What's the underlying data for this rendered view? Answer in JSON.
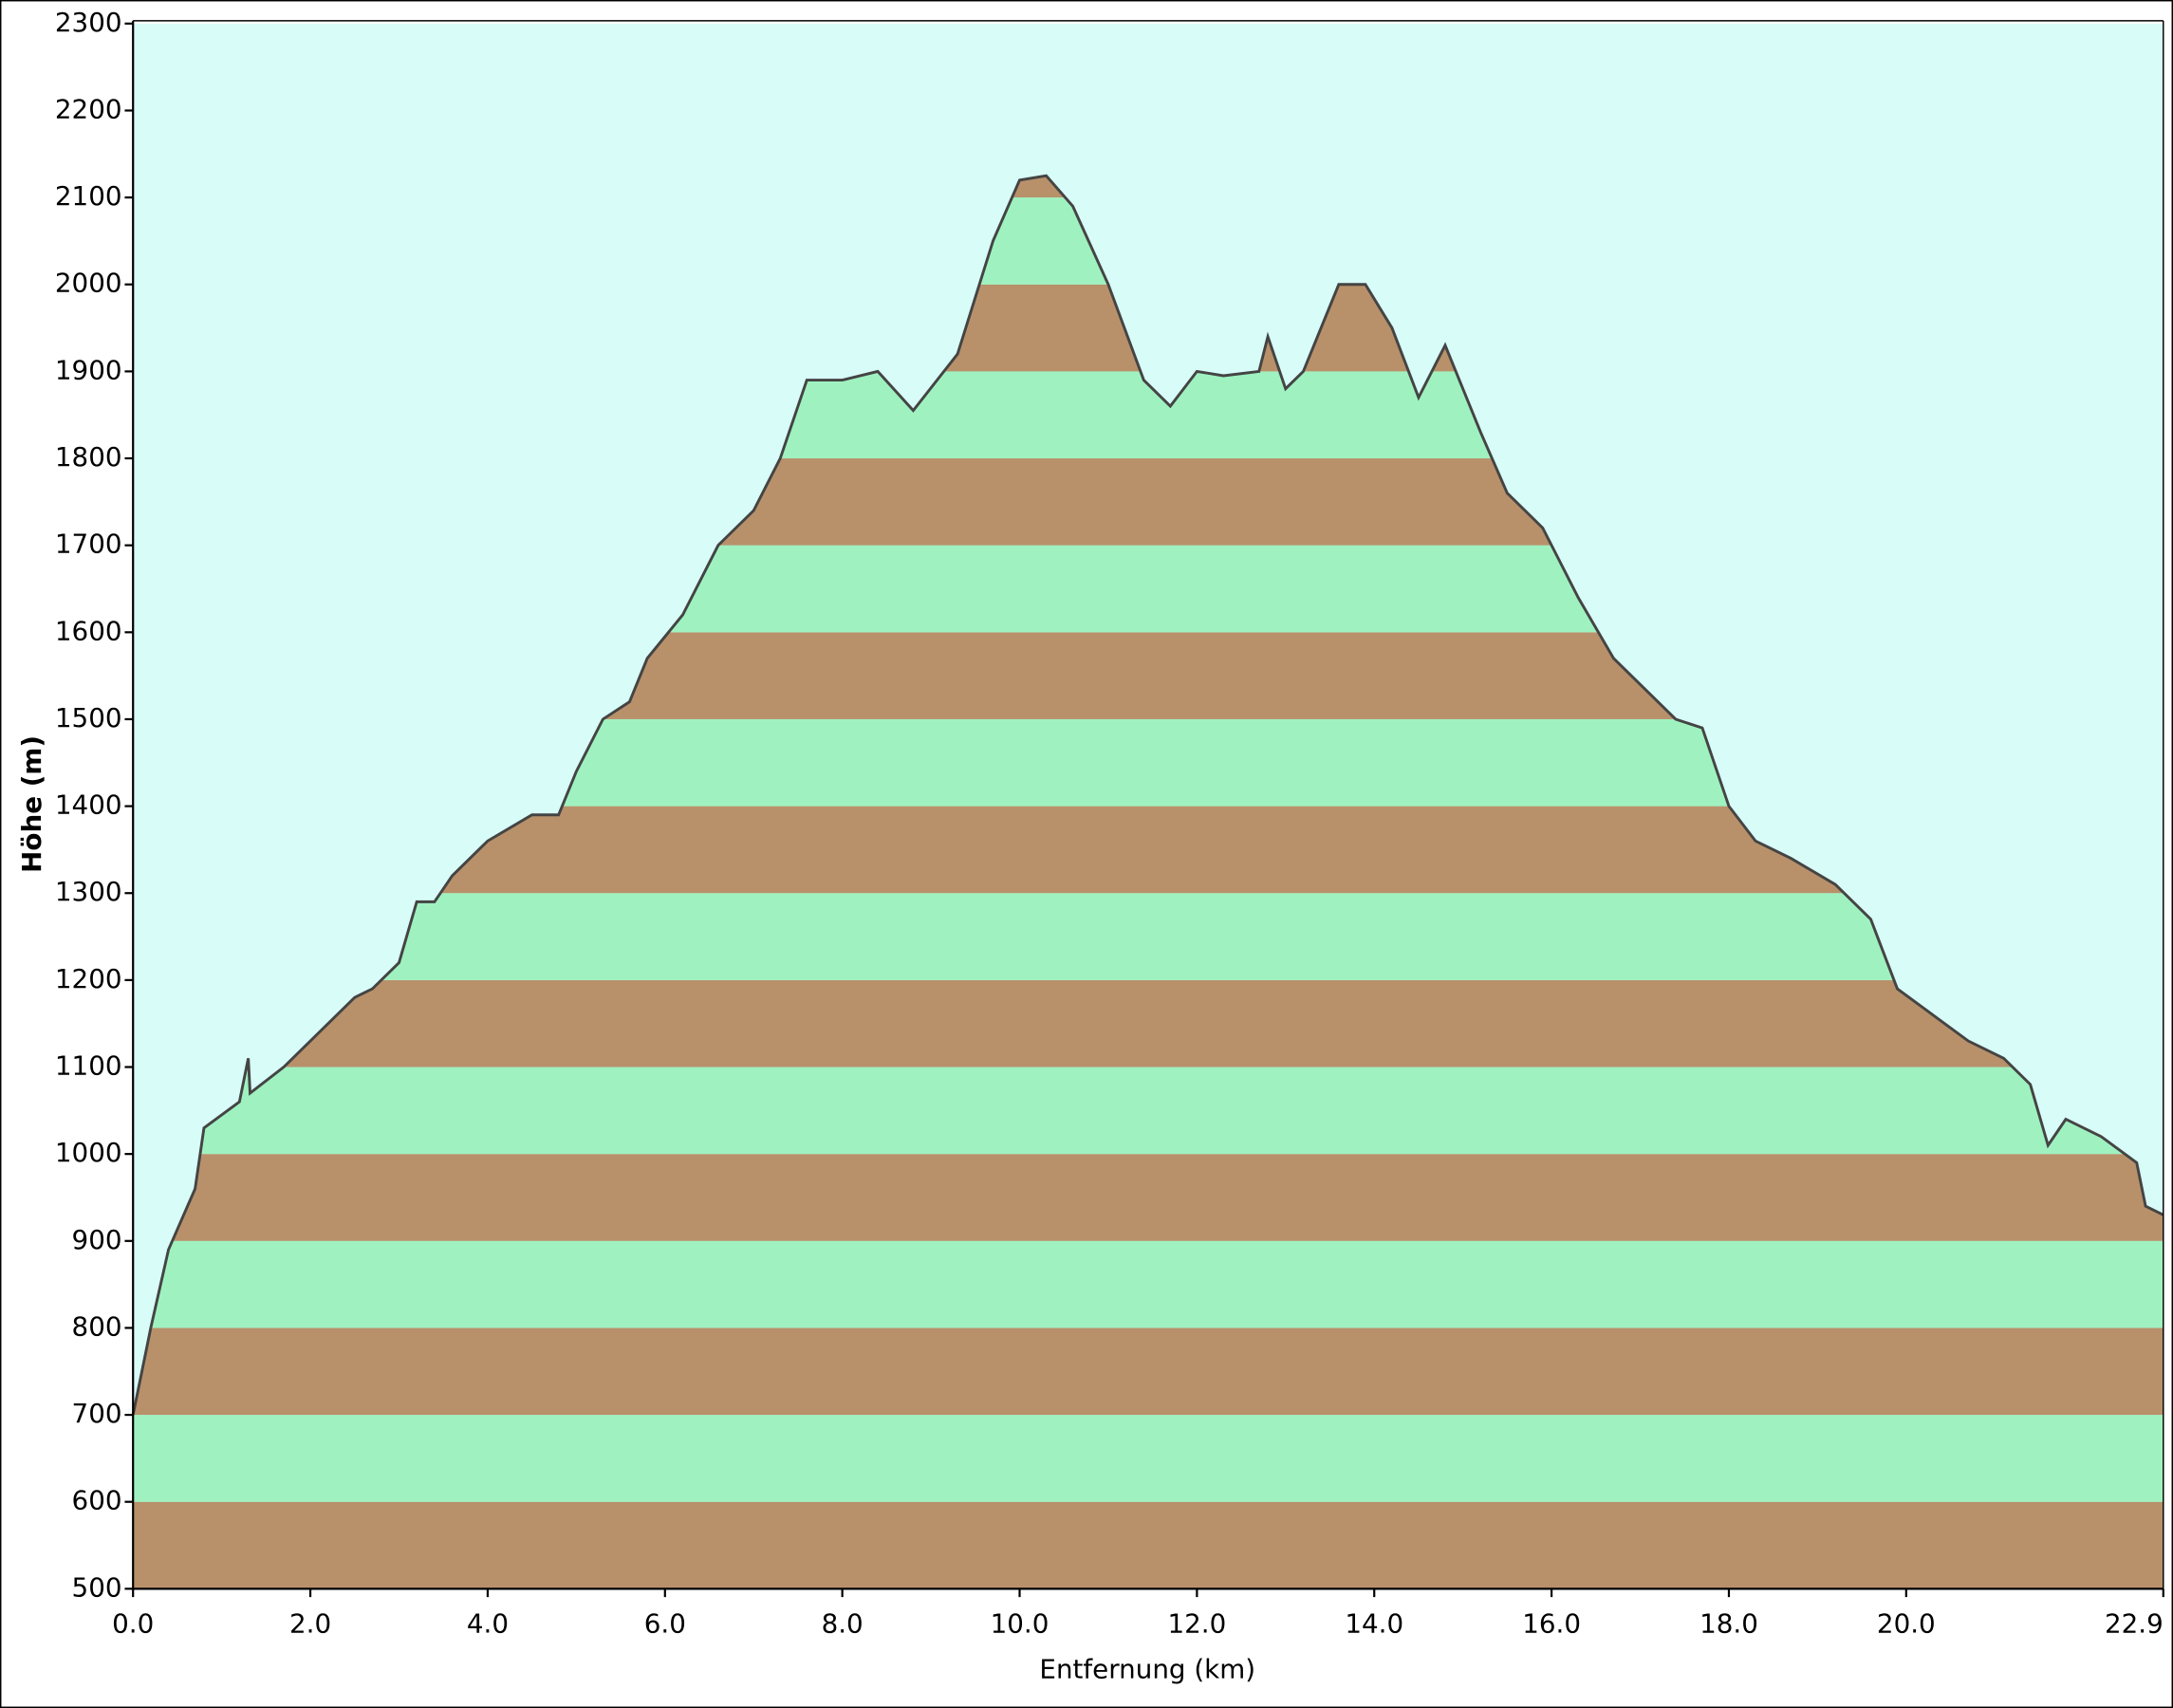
{
  "chart_data": {
    "type": "area",
    "x_label": "Entfernung (km)",
    "y_label": "Höhe (m)",
    "xlim": [
      0,
      22.9
    ],
    "ylim": [
      500,
      2300
    ],
    "xticks": [
      {
        "value": 0,
        "label": "0.0"
      },
      {
        "value": 2,
        "label": "2.0"
      },
      {
        "value": 4,
        "label": "4.0"
      },
      {
        "value": 6,
        "label": "6.0"
      },
      {
        "value": 8,
        "label": "8.0"
      },
      {
        "value": 10,
        "label": "10.0"
      },
      {
        "value": 12,
        "label": "12.0"
      },
      {
        "value": 14,
        "label": "14.0"
      },
      {
        "value": 16,
        "label": "16.0"
      },
      {
        "value": 18,
        "label": "18.0"
      },
      {
        "value": 20,
        "label": "20.0"
      },
      {
        "value": 22.9,
        "label": "22.9"
      }
    ],
    "yticks": [
      500,
      600,
      700,
      800,
      900,
      1000,
      1100,
      1200,
      1300,
      1400,
      1500,
      1600,
      1700,
      1800,
      1900,
      2000,
      2100,
      2200,
      2300
    ],
    "background_color": "#d8fcf8",
    "line_color": "#444444",
    "band_colors": [
      "#b8916a",
      "#9ff2c0"
    ],
    "x": [
      0,
      0.2,
      0.4,
      0.7,
      0.8,
      1.2,
      1.3,
      1.32,
      1.7,
      2.5,
      2.7,
      3.0,
      3.2,
      3.4,
      3.6,
      4.0,
      4.5,
      4.8,
      5.0,
      5.3,
      5.6,
      5.8,
      6.2,
      6.6,
      7.0,
      7.3,
      7.6,
      8.0,
      8.4,
      8.8,
      9.3,
      9.7,
      10.0,
      10.3,
      10.6,
      11.0,
      11.4,
      11.7,
      12.0,
      12.3,
      12.7,
      12.8,
      13.0,
      13.2,
      13.6,
      13.9,
      14.2,
      14.5,
      14.8,
      15.2,
      15.5,
      15.9,
      16.3,
      16.7,
      17.0,
      17.4,
      17.7,
      18.0,
      18.3,
      18.7,
      19.2,
      19.6,
      19.9,
      20.3,
      20.7,
      21.1,
      21.4,
      21.6,
      21.8,
      22.2,
      22.6,
      22.7,
      22.9
    ],
    "values": [
      700,
      800,
      890,
      960,
      1030,
      1060,
      1110,
      1070,
      1100,
      1180,
      1190,
      1220,
      1290,
      1290,
      1320,
      1360,
      1390,
      1390,
      1440,
      1500,
      1520,
      1570,
      1620,
      1700,
      1740,
      1800,
      1890,
      1890,
      1900,
      1855,
      1920,
      2050,
      2120,
      2125,
      2090,
      2000,
      1890,
      1860,
      1900,
      1895,
      1900,
      1940,
      1880,
      1900,
      2000,
      2000,
      1950,
      1870,
      1930,
      1830,
      1760,
      1720,
      1640,
      1570,
      1540,
      1500,
      1490,
      1400,
      1360,
      1340,
      1310,
      1270,
      1190,
      1160,
      1130,
      1110,
      1080,
      1010,
      1040,
      1020,
      990,
      940,
      930
    ]
  }
}
